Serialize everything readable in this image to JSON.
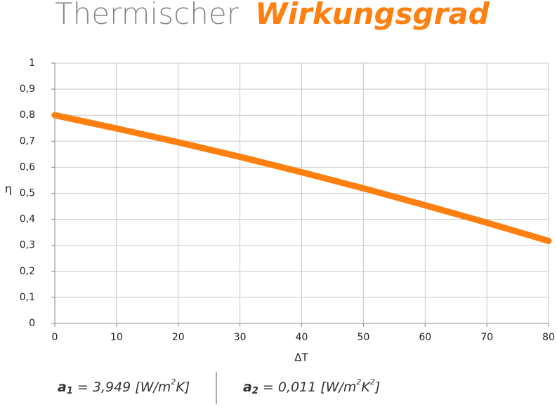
{
  "chart_data": {
    "type": "line",
    "title": [
      "Thermischer",
      "Wirkungsgrad"
    ],
    "xlabel": "ΔT",
    "ylabel": "η",
    "x": [
      0,
      10,
      20,
      30,
      40,
      50,
      60,
      70,
      80
    ],
    "series": [
      {
        "color": "#ff7f0f",
        "values": [
          0.8,
          0.749,
          0.696,
          0.64,
          0.581,
          0.519,
          0.454,
          0.387,
          0.317
        ]
      }
    ],
    "xlim": [
      0,
      80
    ],
    "xticks": [
      0,
      10,
      20,
      30,
      40,
      50,
      60,
      70,
      80
    ],
    "ylim": [
      0,
      1
    ],
    "yticks": [
      0,
      {
        "value": 0.1,
        "label": "0,1"
      },
      {
        "value": 0.2,
        "label": "0,2"
      },
      {
        "value": 0.3,
        "label": "0,3"
      },
      {
        "value": 0.4,
        "label": "0,4"
      },
      {
        "value": 0.5,
        "label": "0,5"
      },
      {
        "value": 0.6,
        "label": "0,6"
      },
      {
        "value": 0.7,
        "label": "0,7"
      },
      {
        "value": 0.8,
        "label": "0,8"
      },
      {
        "value": 0.9,
        "label": "0,9"
      },
      1
    ],
    "grid": true,
    "annotations": [
      [
        "a",
        "1",
        " = 3,949 [W/m",
        "2",
        "K]"
      ],
      [
        "a",
        "2",
        " = 0,011 [W/m",
        "2",
        "K",
        "2",
        "]"
      ]
    ]
  }
}
